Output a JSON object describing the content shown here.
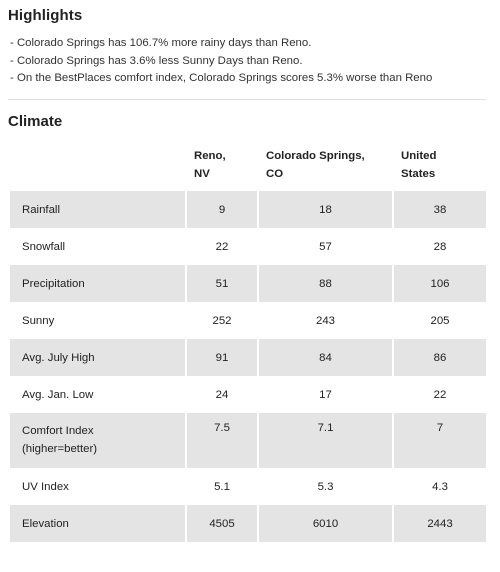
{
  "highlights": {
    "title": "Highlights",
    "items": [
      "- Colorado Springs has 106.7% more rainy days than Reno.",
      "- Colorado Springs has 3.6% less Sunny Days than Reno.",
      "- On the BestPlaces comfort index, Colorado Springs scores 5.3% worse than Reno"
    ]
  },
  "climate": {
    "title": "Climate",
    "headers": {
      "col1": "",
      "reno_line1": "Reno,",
      "reno_line2": "NV",
      "cs_line1": "Colorado Springs,",
      "cs_line2": "CO",
      "us_line1": "United",
      "us_line2": "States"
    },
    "rows": [
      {
        "label": "Rainfall",
        "label2": "",
        "reno": "9",
        "cs": "18",
        "us": "38"
      },
      {
        "label": "Snowfall",
        "label2": "",
        "reno": "22",
        "cs": "57",
        "us": "28"
      },
      {
        "label": "Precipitation",
        "label2": "",
        "reno": "51",
        "cs": "88",
        "us": "106"
      },
      {
        "label": "Sunny",
        "label2": "",
        "reno": "252",
        "cs": "243",
        "us": "205"
      },
      {
        "label": "Avg. July High",
        "label2": "",
        "reno": "91",
        "cs": "84",
        "us": "86"
      },
      {
        "label": "Avg. Jan. Low",
        "label2": "",
        "reno": "24",
        "cs": "17",
        "us": "22"
      },
      {
        "label": "Comfort Index",
        "label2": "(higher=better)",
        "reno": "7.5",
        "cs": "7.1",
        "us": "7"
      },
      {
        "label": "UV Index",
        "label2": "",
        "reno": "5.1",
        "cs": "5.3",
        "us": "4.3"
      },
      {
        "label": "Elevation",
        "label2": "",
        "reno": "4505",
        "cs": "6010",
        "us": "2443"
      }
    ]
  },
  "colors": {
    "row_shade": "#e4e4e4",
    "divider": "#e0e0e0",
    "text": "#222222"
  }
}
